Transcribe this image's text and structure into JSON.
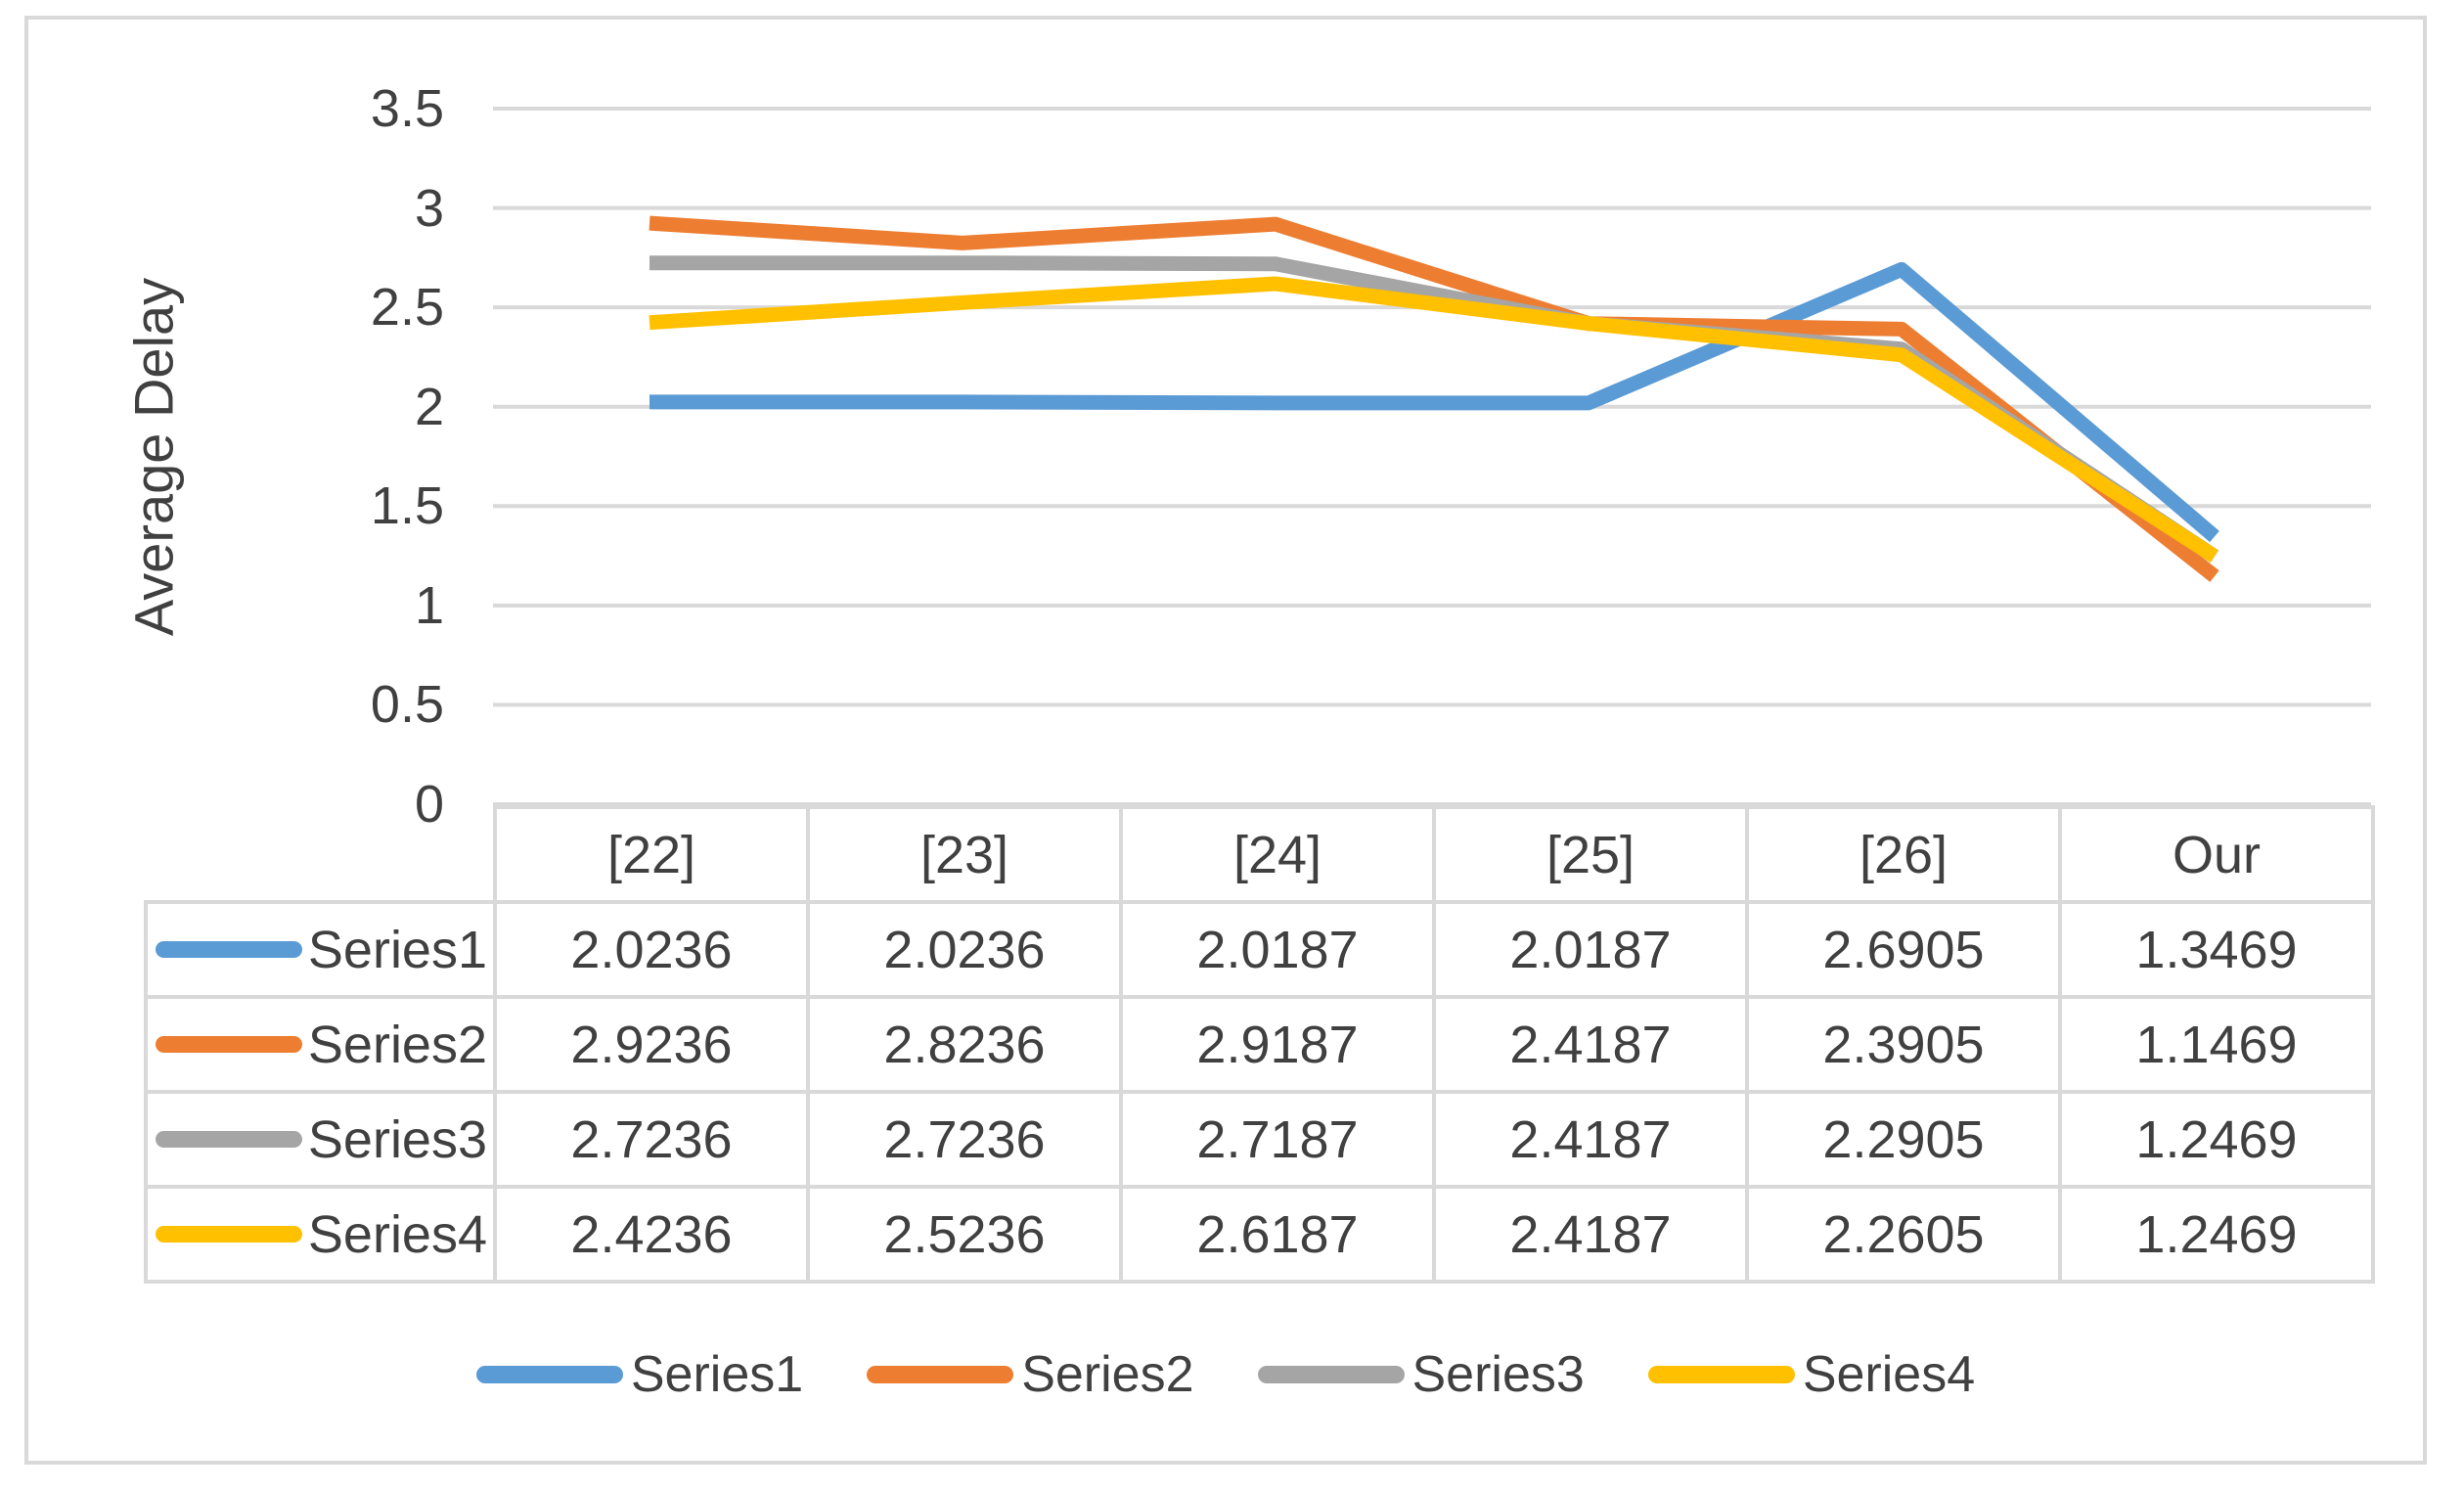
{
  "chart_data": {
    "type": "line",
    "title": "",
    "xlabel": "",
    "ylabel": "Average Delay",
    "categories": [
      "[22]",
      "[23]",
      "[24]",
      "[25]",
      "[26]",
      "Our"
    ],
    "series": [
      {
        "name": "Series1",
        "color": "#5B9BD5",
        "values": [
          2.0236,
          2.0236,
          2.0187,
          2.0187,
          2.6905,
          1.3469
        ]
      },
      {
        "name": "Series2",
        "color": "#ED7D31",
        "values": [
          2.9236,
          2.8236,
          2.9187,
          2.4187,
          2.3905,
          1.1469
        ]
      },
      {
        "name": "Series3",
        "color": "#A5A5A5",
        "values": [
          2.7236,
          2.7236,
          2.7187,
          2.4187,
          2.2905,
          1.2469
        ]
      },
      {
        "name": "Series4",
        "color": "#FFC000",
        "values": [
          2.4236,
          2.5236,
          2.6187,
          2.4187,
          2.2605,
          1.2469
        ]
      }
    ],
    "ylim": [
      0,
      3.5
    ],
    "ytick_step": 0.5,
    "yticks": [
      "3.5",
      "3",
      "2.5",
      "2",
      "1.5",
      "1",
      "0.5",
      "0"
    ],
    "value_decimals": 4,
    "grid": true,
    "gridline_color": "#D9D9D9",
    "axis_text_color": "#404040",
    "legend_position": "bottom",
    "data_table_shown": true
  }
}
